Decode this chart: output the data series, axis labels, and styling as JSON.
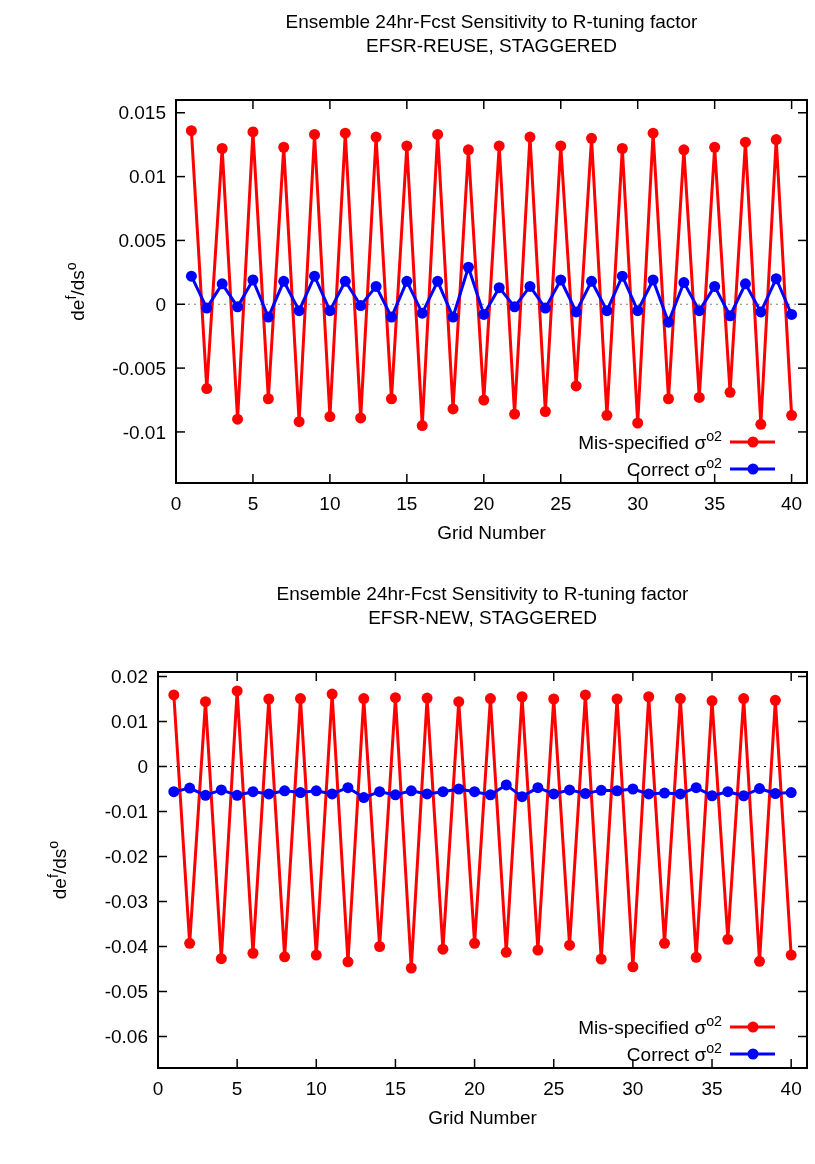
{
  "chart_data": [
    {
      "type": "line",
      "title": "Ensemble 24hr-Fcst Sensitivity to R-tuning factor",
      "subtitle": "EFSR-REUSE, STAGGERED",
      "xlabel": "Grid Number",
      "ylabel": "de$^{f}$/ds$^{o}$",
      "x": [
        1,
        2,
        3,
        4,
        5,
        6,
        7,
        8,
        9,
        10,
        11,
        12,
        13,
        14,
        15,
        16,
        17,
        18,
        19,
        20,
        21,
        22,
        23,
        24,
        25,
        26,
        27,
        28,
        29,
        30,
        31,
        32,
        33,
        34,
        35,
        36,
        37,
        38,
        39,
        40
      ],
      "xlim": [
        0,
        41
      ],
      "xticks": [
        0,
        5,
        10,
        15,
        20,
        25,
        30,
        35,
        40
      ],
      "ylim": [
        -0.014,
        0.016
      ],
      "yticks": [
        -0.01,
        -0.005,
        0,
        0.005,
        0.01,
        0.015
      ],
      "grid": false,
      "legend": "bottom right",
      "marker": "circle",
      "line_style": "solid",
      "ref_lines": [
        {
          "axis": "y",
          "value": 0,
          "color": "#808080",
          "line_style": "dotted"
        }
      ],
      "series": [
        {
          "name": "Mis-specified σ$^{o2}$",
          "color": "#ff0000",
          "values": [
            0.0136,
            -0.0066,
            0.0122,
            -0.009,
            0.0135,
            -0.0074,
            0.0123,
            -0.0092,
            0.0133,
            -0.0088,
            0.0134,
            -0.0089,
            0.0131,
            -0.0074,
            0.0124,
            -0.0095,
            0.0133,
            -0.0082,
            0.0121,
            -0.0075,
            0.0124,
            -0.0086,
            0.0131,
            -0.0084,
            0.0124,
            -0.0064,
            0.013,
            -0.0087,
            0.0122,
            -0.0093,
            0.0134,
            -0.0074,
            0.0121,
            -0.0073,
            0.0123,
            -0.0069,
            0.0127,
            -0.0094,
            0.0129,
            -0.0087
          ]
        },
        {
          "name": "Correct σ$^{o2}$",
          "color": "#0000ff",
          "values": [
            0.0022,
            -0.0003,
            0.0016,
            -0.0002,
            0.0019,
            -0.001,
            0.0018,
            -0.0005,
            0.0022,
            -0.0005,
            0.0018,
            -0.0001,
            0.0014,
            -0.001,
            0.0018,
            -0.0007,
            0.0018,
            -0.001,
            0.0029,
            -0.0008,
            0.0013,
            -0.0002,
            0.0014,
            -0.0003,
            0.0019,
            -0.0006,
            0.0018,
            -0.0005,
            0.0022,
            -0.0005,
            0.0019,
            -0.0014,
            0.0017,
            -0.0005,
            0.0014,
            -0.0009,
            0.0016,
            -0.0006,
            0.002,
            -0.0008
          ]
        }
      ]
    },
    {
      "type": "line",
      "title": "Ensemble 24hr-Fcst Sensitivity to R-tuning factor",
      "subtitle": "EFSR-NEW, STAGGERED",
      "xlabel": "Grid Number",
      "ylabel": "de$^{f}$/ds$^{o}$",
      "x": [
        1,
        2,
        3,
        4,
        5,
        6,
        7,
        8,
        9,
        10,
        11,
        12,
        13,
        14,
        15,
        16,
        17,
        18,
        19,
        20,
        21,
        22,
        23,
        24,
        25,
        26,
        27,
        28,
        29,
        30,
        31,
        32,
        33,
        34,
        35,
        36,
        37,
        38,
        39,
        40
      ],
      "xlim": [
        0,
        41
      ],
      "xticks": [
        0,
        5,
        10,
        15,
        20,
        25,
        30,
        35,
        40
      ],
      "ylim": [
        -0.067,
        0.021
      ],
      "yticks": [
        -0.06,
        -0.05,
        -0.04,
        -0.03,
        -0.02,
        -0.01,
        0,
        0.01,
        0.02
      ],
      "grid": false,
      "legend": "bottom right",
      "marker": "circle",
      "line_style": "solid",
      "ref_lines": [
        {
          "axis": "y",
          "value": 0,
          "color": "#000000",
          "line_style": "dotted"
        }
      ],
      "series": [
        {
          "name": "Mis-specified σ$^{o2}$",
          "color": "#ff0000",
          "values": [
            0.0159,
            -0.0393,
            0.0144,
            -0.0427,
            0.0168,
            -0.0415,
            0.015,
            -0.0423,
            0.0151,
            -0.0419,
            0.0161,
            -0.0434,
            0.0151,
            -0.04,
            0.0153,
            -0.0448,
            0.0152,
            -0.0406,
            0.0144,
            -0.0393,
            0.0151,
            -0.0413,
            0.0155,
            -0.0408,
            0.015,
            -0.0397,
            0.0159,
            -0.0428,
            0.015,
            -0.0445,
            0.0155,
            -0.0393,
            0.0151,
            -0.0424,
            0.0146,
            -0.0384,
            0.0151,
            -0.0433,
            0.0147,
            -0.0419
          ]
        },
        {
          "name": "Correct σ$^{o2}$",
          "color": "#0000ff",
          "values": [
            -0.0056,
            -0.0048,
            -0.0064,
            -0.0052,
            -0.0064,
            -0.0056,
            -0.0061,
            -0.0054,
            -0.0058,
            -0.0054,
            -0.0061,
            -0.0047,
            -0.0069,
            -0.0056,
            -0.0063,
            -0.0054,
            -0.0061,
            -0.0056,
            -0.005,
            -0.0056,
            -0.0063,
            -0.0041,
            -0.0067,
            -0.0047,
            -0.0061,
            -0.0052,
            -0.006,
            -0.0053,
            -0.0054,
            -0.005,
            -0.0061,
            -0.0059,
            -0.0061,
            -0.0047,
            -0.0065,
            -0.0056,
            -0.0065,
            -0.0049,
            -0.006,
            -0.0058
          ]
        }
      ]
    }
  ]
}
